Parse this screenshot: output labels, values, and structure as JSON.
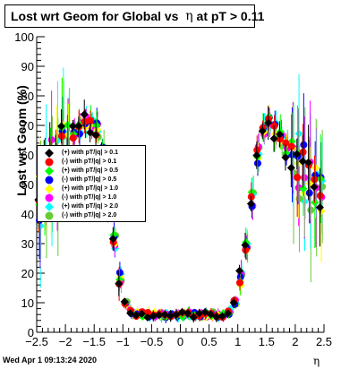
{
  "title": {
    "prefix": "Lost wrt Geom for Global vs  ",
    "eta": "η",
    "suffix": " at pT > 0.11"
  },
  "footer": "Wed Apr  1 09:13:24 2020",
  "chart_data": {
    "type": "scatter",
    "title": "Lost wrt Geom for Global vs  η at pT > 0.11",
    "xlabel": "η",
    "ylabel": "Lost wrt Geom (%)",
    "xlim": [
      -2.5,
      2.5
    ],
    "ylim": [
      0,
      100
    ],
    "x_ticks": [
      "−2.5",
      "−2",
      "−1.5",
      "−1",
      "−0.5",
      "0",
      "0.5",
      "1",
      "1.5",
      "2",
      "2.5"
    ],
    "y_ticks": [
      "0",
      "10",
      "20",
      "30",
      "40",
      "50",
      "60",
      "70",
      "80",
      "90",
      "100"
    ],
    "grid": false,
    "legend_position": "left",
    "series": [
      {
        "name": "(+) with pT/|q| > 0.1",
        "color": "#000000",
        "marker": "diamond"
      },
      {
        "name": "(-) with pT/|q| > 0.1",
        "color": "#ff0000",
        "marker": "circle"
      },
      {
        "name": "(+) with pT/|q| > 0.5",
        "color": "#00ff00",
        "marker": "diamond"
      },
      {
        "name": "(-) with pT/|q| > 0.5",
        "color": "#0000ff",
        "marker": "circle"
      },
      {
        "name": "(+) with pT/|q| > 1.0",
        "color": "#ffff00",
        "marker": "diamond"
      },
      {
        "name": "(-) with pT/|q| > 1.0",
        "color": "#ff00ff",
        "marker": "circle"
      },
      {
        "name": "(+) with pT/|q| > 2.0",
        "color": "#00ffff",
        "marker": "diamond"
      },
      {
        "name": "(-) with pT/|q| > 2.0",
        "color": "#66cc33",
        "marker": "circle"
      }
    ],
    "shape": {
      "eta": [
        -2.45,
        -2.35,
        -2.25,
        -2.15,
        -2.05,
        -1.95,
        -1.85,
        -1.75,
        -1.65,
        -1.55,
        -1.45,
        -1.35,
        -1.25,
        -1.15,
        -1.05,
        -0.95,
        -0.85,
        -0.75,
        -0.65,
        -0.55,
        -0.45,
        -0.35,
        -0.25,
        -0.15,
        -0.05,
        0.05,
        0.15,
        0.25,
        0.35,
        0.45,
        0.55,
        0.65,
        0.75,
        0.85,
        0.95,
        1.05,
        1.15,
        1.25,
        1.35,
        1.45,
        1.55,
        1.65,
        1.75,
        1.85,
        1.95,
        2.05,
        2.15,
        2.25,
        2.35,
        2.45
      ],
      "lost_pct": [
        45,
        52,
        55,
        60,
        64,
        66,
        68,
        70,
        71,
        70,
        68,
        60,
        45,
        30,
        18,
        10,
        7,
        6,
        6,
        6,
        6,
        6,
        6,
        6,
        6,
        6,
        6,
        6,
        6,
        6,
        6,
        6,
        6,
        7,
        10,
        18,
        30,
        45,
        60,
        68,
        70,
        68,
        65,
        62,
        60,
        58,
        55,
        52,
        50,
        47
      ]
    }
  }
}
